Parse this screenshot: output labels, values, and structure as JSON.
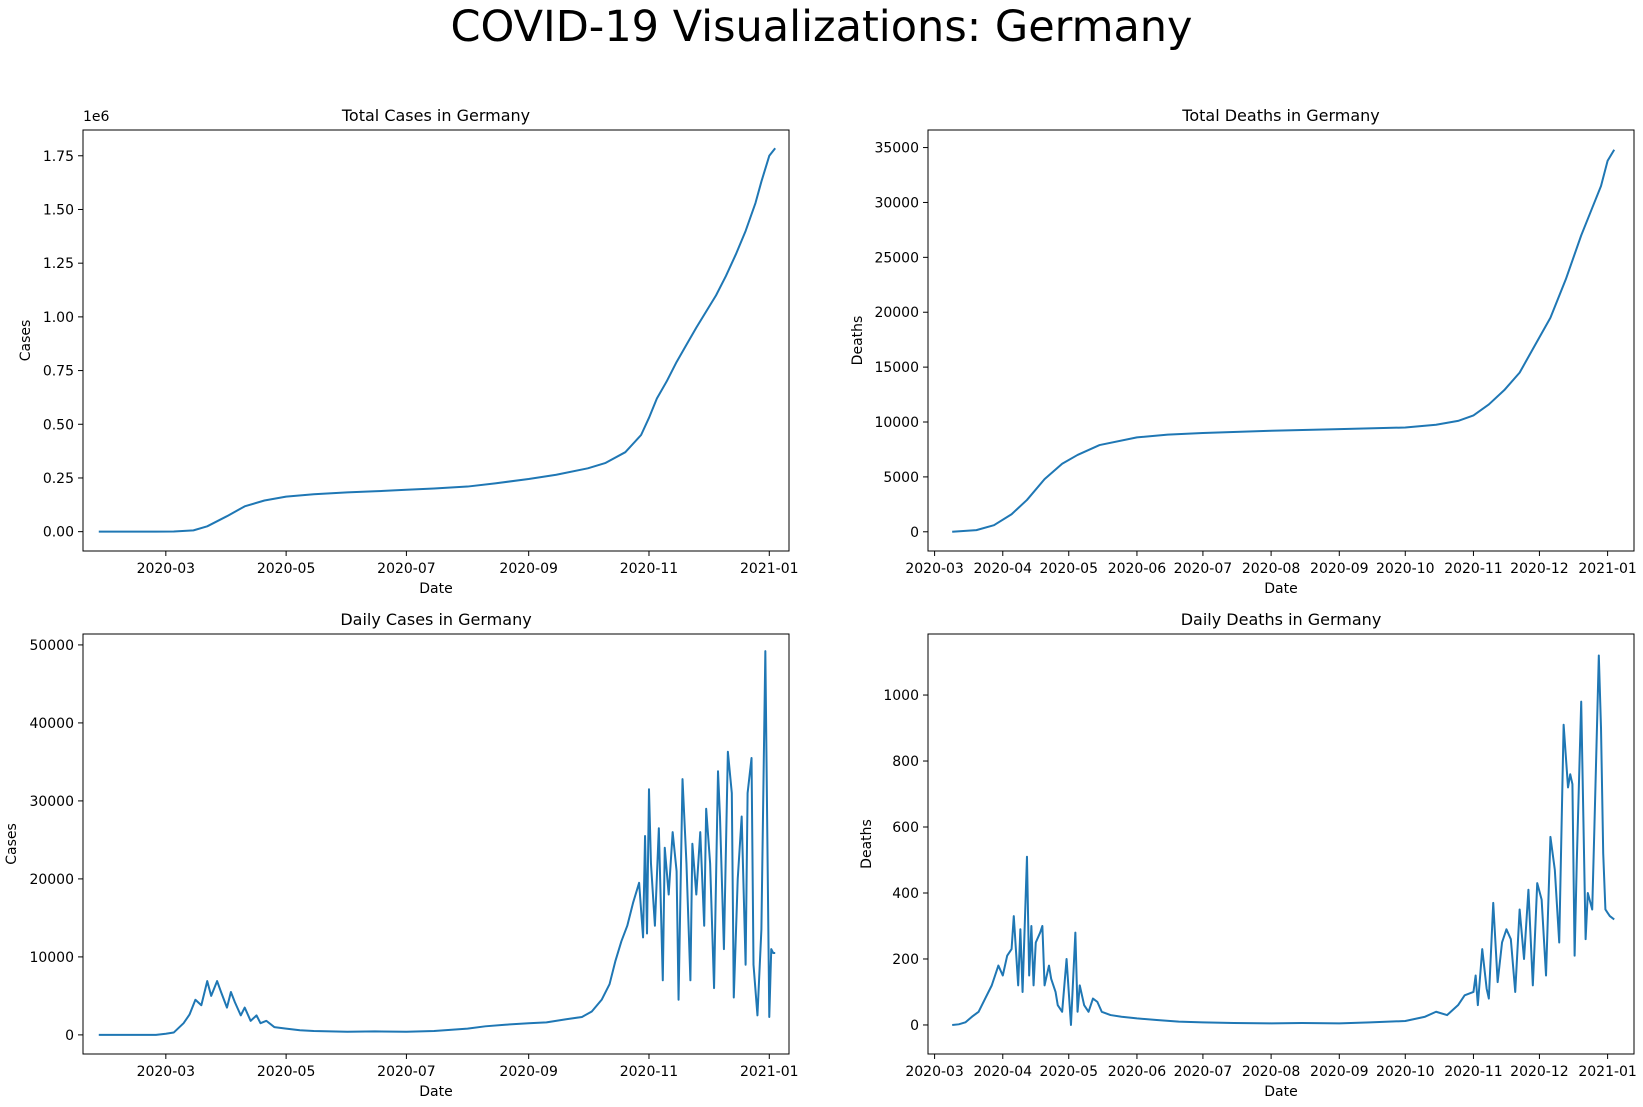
{
  "suptitle": "COVID-19 Visualizations: Germany",
  "colors": {
    "line": "#1f77b4",
    "axes": "#000000",
    "background": "#ffffff"
  },
  "chart_data": [
    {
      "id": "total-cases",
      "type": "line",
      "title": "Total Cases in Germany",
      "xlabel": "Date",
      "ylabel": "Cases",
      "y_offset_label": "1e6",
      "y_scale": 1000000,
      "grid": false,
      "xlim": [
        "2020-01-19",
        "2021-01-11"
      ],
      "ylim": [
        -0.09,
        1.87
      ],
      "x_ticks": [
        "2020-03-01",
        "2020-05-01",
        "2020-07-01",
        "2020-09-01",
        "2020-11-01",
        "2021-01-01"
      ],
      "x_tick_labels": [
        "2020-03",
        "2020-05",
        "2020-07",
        "2020-09",
        "2020-11",
        "2021-01"
      ],
      "y_ticks": [
        0.0,
        0.25,
        0.5,
        0.75,
        1.0,
        1.25,
        1.5,
        1.75
      ],
      "y_tick_labels": [
        "0.00",
        "0.25",
        "0.50",
        "0.75",
        "1.00",
        "1.25",
        "1.50",
        "1.75"
      ],
      "series": [
        {
          "x": [
            "2020-01-27",
            "2020-02-25",
            "2020-03-05",
            "2020-03-15",
            "2020-03-22",
            "2020-04-01",
            "2020-04-10",
            "2020-04-20",
            "2020-05-01",
            "2020-05-15",
            "2020-06-01",
            "2020-06-15",
            "2020-07-01",
            "2020-07-15",
            "2020-08-01",
            "2020-08-15",
            "2020-09-01",
            "2020-09-15",
            "2020-10-01",
            "2020-10-10",
            "2020-10-20",
            "2020-10-28",
            "2020-11-01",
            "2020-11-05",
            "2020-11-10",
            "2020-11-15",
            "2020-11-20",
            "2020-11-25",
            "2020-12-01",
            "2020-12-05",
            "2020-12-10",
            "2020-12-15",
            "2020-12-20",
            "2020-12-25",
            "2020-12-28",
            "2021-01-01",
            "2021-01-04"
          ],
          "values": [
            0.0,
            0.0,
            0.001,
            0.006,
            0.025,
            0.072,
            0.118,
            0.145,
            0.163,
            0.174,
            0.183,
            0.188,
            0.195,
            0.201,
            0.21,
            0.225,
            0.245,
            0.265,
            0.295,
            0.32,
            0.37,
            0.45,
            0.53,
            0.62,
            0.7,
            0.79,
            0.87,
            0.95,
            1.04,
            1.1,
            1.19,
            1.29,
            1.4,
            1.53,
            1.63,
            1.75,
            1.785
          ]
        }
      ]
    },
    {
      "id": "total-deaths",
      "type": "line",
      "title": "Total Deaths in Germany",
      "xlabel": "Date",
      "ylabel": "Deaths",
      "grid": false,
      "xlim": [
        "2020-02-27",
        "2021-01-13"
      ],
      "ylim": [
        -1750,
        36600
      ],
      "x_ticks": [
        "2020-03-01",
        "2020-04-01",
        "2020-05-01",
        "2020-06-01",
        "2020-07-01",
        "2020-08-01",
        "2020-09-01",
        "2020-10-01",
        "2020-11-01",
        "2020-12-01",
        "2021-01-01"
      ],
      "x_tick_labels": [
        "2020-03",
        "2020-04",
        "2020-05",
        "2020-06",
        "2020-07",
        "2020-08",
        "2020-09",
        "2020-10",
        "2020-11",
        "2020-12",
        "2021-01"
      ],
      "y_ticks": [
        0,
        5000,
        10000,
        15000,
        20000,
        25000,
        30000,
        35000
      ],
      "y_tick_labels": [
        "0",
        "5000",
        "10000",
        "15000",
        "20000",
        "25000",
        "30000",
        "35000"
      ],
      "series": [
        {
          "x": [
            "2020-03-09",
            "2020-03-20",
            "2020-03-28",
            "2020-04-05",
            "2020-04-12",
            "2020-04-20",
            "2020-04-28",
            "2020-05-05",
            "2020-05-15",
            "2020-06-01",
            "2020-06-15",
            "2020-07-01",
            "2020-08-01",
            "2020-09-01",
            "2020-10-01",
            "2020-10-15",
            "2020-10-25",
            "2020-11-01",
            "2020-11-08",
            "2020-11-15",
            "2020-11-22",
            "2020-11-29",
            "2020-12-06",
            "2020-12-13",
            "2020-12-20",
            "2020-12-25",
            "2020-12-29",
            "2021-01-01",
            "2021-01-04"
          ],
          "values": [
            0,
            150,
            600,
            1600,
            2900,
            4800,
            6200,
            7000,
            7900,
            8600,
            8850,
            9000,
            9200,
            9350,
            9500,
            9750,
            10100,
            10600,
            11600,
            12900,
            14500,
            17000,
            19500,
            23000,
            27000,
            29500,
            31500,
            33800,
            34800
          ]
        }
      ]
    },
    {
      "id": "daily-cases",
      "type": "line",
      "title": "Daily Cases in Germany",
      "xlabel": "Date",
      "ylabel": "Cases",
      "grid": false,
      "xlim": [
        "2020-01-19",
        "2021-01-11"
      ],
      "ylim": [
        -2450,
        51400
      ],
      "x_ticks": [
        "2020-03-01",
        "2020-05-01",
        "2020-07-01",
        "2020-09-01",
        "2020-11-01",
        "2021-01-01"
      ],
      "x_tick_labels": [
        "2020-03",
        "2020-05",
        "2020-07",
        "2020-09",
        "2020-11",
        "2021-01"
      ],
      "y_ticks": [
        0,
        10000,
        20000,
        30000,
        40000,
        50000
      ],
      "y_tick_labels": [
        "0",
        "10000",
        "20000",
        "30000",
        "40000",
        "50000"
      ],
      "series": [
        {
          "x": [
            "2020-01-27",
            "2020-02-25",
            "2020-03-01",
            "2020-03-05",
            "2020-03-10",
            "2020-03-13",
            "2020-03-16",
            "2020-03-19",
            "2020-03-22",
            "2020-03-24",
            "2020-03-27",
            "2020-03-29",
            "2020-04-01",
            "2020-04-03",
            "2020-04-05",
            "2020-04-08",
            "2020-04-10",
            "2020-04-13",
            "2020-04-16",
            "2020-04-18",
            "2020-04-21",
            "2020-04-25",
            "2020-05-01",
            "2020-05-08",
            "2020-05-15",
            "2020-06-01",
            "2020-06-15",
            "2020-07-01",
            "2020-07-15",
            "2020-08-01",
            "2020-08-10",
            "2020-08-20",
            "2020-09-01",
            "2020-09-10",
            "2020-09-20",
            "2020-09-28",
            "2020-10-03",
            "2020-10-08",
            "2020-10-12",
            "2020-10-15",
            "2020-10-18",
            "2020-10-21",
            "2020-10-24",
            "2020-10-27",
            "2020-10-29",
            "2020-10-30",
            "2020-10-31",
            "2020-11-01",
            "2020-11-02",
            "2020-11-04",
            "2020-11-06",
            "2020-11-08",
            "2020-11-09",
            "2020-11-11",
            "2020-11-13",
            "2020-11-15",
            "2020-11-16",
            "2020-11-18",
            "2020-11-20",
            "2020-11-22",
            "2020-11-23",
            "2020-11-25",
            "2020-11-27",
            "2020-11-29",
            "2020-11-30",
            "2020-12-02",
            "2020-12-04",
            "2020-12-06",
            "2020-12-07",
            "2020-12-09",
            "2020-12-11",
            "2020-12-13",
            "2020-12-14",
            "2020-12-16",
            "2020-12-18",
            "2020-12-20",
            "2020-12-21",
            "2020-12-23",
            "2020-12-24",
            "2020-12-26",
            "2020-12-28",
            "2020-12-30",
            "2021-01-01",
            "2021-01-02",
            "2021-01-03",
            "2021-01-04"
          ],
          "values": [
            0,
            0,
            150,
            300,
            1500,
            2600,
            4500,
            3800,
            6900,
            5000,
            6900,
            5500,
            3500,
            5500,
            4200,
            2500,
            3500,
            1800,
            2500,
            1500,
            1800,
            1000,
            800,
            600,
            500,
            400,
            450,
            400,
            500,
            800,
            1100,
            1300,
            1500,
            1600,
            2000,
            2300,
            3000,
            4500,
            6500,
            9500,
            12000,
            14000,
            17000,
            19500,
            12500,
            25500,
            13000,
            31500,
            22000,
            14000,
            26500,
            7000,
            24000,
            18000,
            26000,
            21000,
            4500,
            32800,
            22000,
            7000,
            24500,
            18000,
            26000,
            14000,
            29000,
            22000,
            6000,
            33800,
            28000,
            11000,
            36300,
            31000,
            4800,
            20000,
            28000,
            9000,
            31000,
            35500,
            9000,
            2500,
            13500,
            49200,
            2300,
            11000,
            10500,
            10500
          ]
        }
      ]
    },
    {
      "id": "daily-deaths",
      "type": "line",
      "title": "Daily Deaths in Germany",
      "xlabel": "Date",
      "ylabel": "Deaths",
      "grid": false,
      "xlim": [
        "2020-02-27",
        "2021-01-13"
      ],
      "ylim": [
        -88,
        1185
      ],
      "x_ticks": [
        "2020-03-01",
        "2020-04-01",
        "2020-05-01",
        "2020-06-01",
        "2020-07-01",
        "2020-08-01",
        "2020-09-01",
        "2020-10-01",
        "2020-11-01",
        "2020-12-01",
        "2021-01-01"
      ],
      "x_tick_labels": [
        "2020-03",
        "2020-04",
        "2020-05",
        "2020-06",
        "2020-07",
        "2020-08",
        "2020-09",
        "2020-10",
        "2020-11",
        "2020-12",
        "2021-01"
      ],
      "y_ticks": [
        0,
        200,
        400,
        600,
        800,
        1000
      ],
      "y_tick_labels": [
        "0",
        "200",
        "400",
        "600",
        "800",
        "1000"
      ],
      "series": [
        {
          "x": [
            "2020-03-09",
            "2020-03-12",
            "2020-03-15",
            "2020-03-18",
            "2020-03-21",
            "2020-03-24",
            "2020-03-27",
            "2020-03-30",
            "2020-04-01",
            "2020-04-03",
            "2020-04-05",
            "2020-04-06",
            "2020-04-08",
            "2020-04-09",
            "2020-04-10",
            "2020-04-12",
            "2020-04-13",
            "2020-04-14",
            "2020-04-15",
            "2020-04-16",
            "2020-04-18",
            "2020-04-19",
            "2020-04-20",
            "2020-04-22",
            "2020-04-23",
            "2020-04-25",
            "2020-04-26",
            "2020-04-28",
            "2020-04-30",
            "2020-05-02",
            "2020-05-04",
            "2020-05-05",
            "2020-05-06",
            "2020-05-08",
            "2020-05-10",
            "2020-05-12",
            "2020-05-14",
            "2020-05-16",
            "2020-05-20",
            "2020-05-25",
            "2020-06-01",
            "2020-06-10",
            "2020-06-20",
            "2020-07-01",
            "2020-07-15",
            "2020-08-01",
            "2020-08-15",
            "2020-09-01",
            "2020-09-15",
            "2020-10-01",
            "2020-10-10",
            "2020-10-15",
            "2020-10-20",
            "2020-10-25",
            "2020-10-28",
            "2020-11-01",
            "2020-11-02",
            "2020-11-03",
            "2020-11-05",
            "2020-11-07",
            "2020-11-08",
            "2020-11-10",
            "2020-11-12",
            "2020-11-14",
            "2020-11-16",
            "2020-11-18",
            "2020-11-20",
            "2020-11-22",
            "2020-11-24",
            "2020-11-26",
            "2020-11-28",
            "2020-11-30",
            "2020-12-02",
            "2020-12-04",
            "2020-12-06",
            "2020-12-08",
            "2020-12-10",
            "2020-12-12",
            "2020-12-14",
            "2020-12-15",
            "2020-12-16",
            "2020-12-17",
            "2020-12-18",
            "2020-12-20",
            "2020-12-22",
            "2020-12-23",
            "2020-12-25",
            "2020-12-26",
            "2020-12-28",
            "2020-12-29",
            "2020-12-30",
            "2020-12-31",
            "2021-01-01",
            "2021-01-02",
            "2021-01-04"
          ],
          "values": [
            0,
            2,
            8,
            25,
            40,
            80,
            120,
            180,
            150,
            210,
            230,
            330,
            120,
            290,
            100,
            510,
            150,
            300,
            120,
            250,
            280,
            300,
            120,
            180,
            140,
            100,
            60,
            40,
            200,
            0,
            280,
            40,
            120,
            60,
            40,
            80,
            70,
            40,
            30,
            25,
            20,
            15,
            10,
            8,
            6,
            5,
            6,
            5,
            8,
            12,
            25,
            40,
            30,
            60,
            90,
            100,
            150,
            60,
            230,
            110,
            80,
            370,
            130,
            250,
            290,
            260,
            100,
            350,
            200,
            410,
            120,
            430,
            380,
            150,
            570,
            470,
            250,
            910,
            720,
            760,
            730,
            210,
            500,
            980,
            260,
            400,
            350,
            600,
            1120,
            900,
            520,
            350,
            340,
            330,
            320
          ]
        }
      ]
    }
  ]
}
